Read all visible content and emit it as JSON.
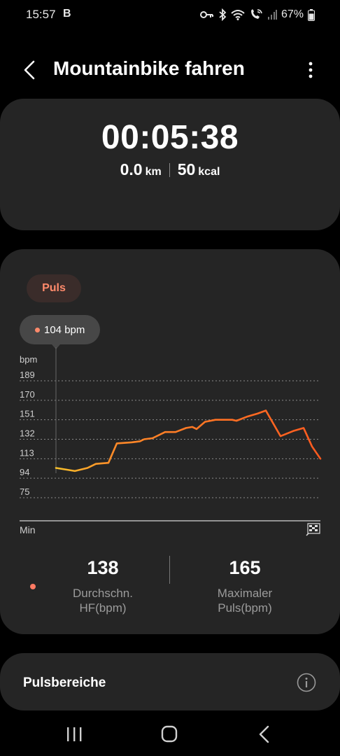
{
  "status_bar": {
    "time": "15:57",
    "indicator": "B",
    "battery_percent": "67%"
  },
  "header": {
    "title": "Mountainbike fahren"
  },
  "summary": {
    "duration": "00:05:38",
    "distance_value": "0.0",
    "distance_unit": "km",
    "calories_value": "50",
    "calories_unit": "kcal"
  },
  "chart_section": {
    "chip_label": "Puls",
    "tooltip_value": "104 bpm"
  },
  "chart_data": {
    "type": "line",
    "ylabel": "bpm",
    "xlabel": "Min",
    "y_ticks": [
      "189",
      "170",
      "151",
      "132",
      "113",
      "94",
      "75"
    ],
    "ylim": [
      75,
      189
    ],
    "grid": true,
    "series": [
      {
        "values": [
          104,
          102,
          101,
          104,
          108,
          109,
          128,
          129,
          130,
          132,
          133,
          139,
          139,
          143,
          144,
          142,
          149,
          151,
          151,
          151,
          150,
          154,
          157,
          160,
          135,
          140,
          143,
          125,
          113
        ],
        "x": [
          0.0,
          0.06,
          0.09,
          0.15,
          0.19,
          0.25,
          0.29,
          0.36,
          0.4,
          0.42,
          0.46,
          0.52,
          0.57,
          0.62,
          0.65,
          0.67,
          0.71,
          0.76,
          0.8,
          0.84,
          0.86,
          0.91,
          0.96,
          1.0,
          1.07,
          1.13,
          1.18,
          1.22,
          1.26
        ]
      }
    ],
    "gradient_colors": [
      "#f6c02b",
      "#ff8a28",
      "#ff5a1f"
    ]
  },
  "summary_stats": {
    "avg_value": "138",
    "avg_label_line1": "Durchschn.",
    "avg_label_line2": "HF(bpm)",
    "max_value": "165",
    "max_label_line1": "Maximaler",
    "max_label_line2": "Puls(bpm)"
  },
  "zones": {
    "title": "Pulsbereiche"
  },
  "colors": {
    "background": "#000000",
    "card": "#252525",
    "accent": "#ff8a6b",
    "secondary_text": "#9b9b9b"
  },
  "icons": [
    "key-icon",
    "bluetooth-icon",
    "wifi-icon",
    "wifi-calling-icon",
    "signal-icon",
    "battery-icon",
    "back-icon",
    "more-vertical-icon",
    "finish-flag-icon",
    "info-icon",
    "recent-apps-icon",
    "home-icon",
    "nav-back-icon"
  ]
}
